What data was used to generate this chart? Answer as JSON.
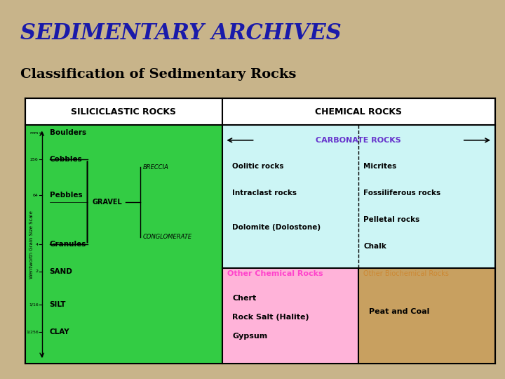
{
  "title": "SEDIMENTARY ARCHIVES",
  "subtitle": "Classification of Sedimentary Rocks",
  "bg_color": "#C8B48A",
  "title_color": "#1a1aaa",
  "subtitle_color": "#000000",
  "table_bg": "#ffffff",
  "green_color": "#33cc44",
  "light_blue_color": "#ccf5f5",
  "pink_color": "#ffb3d9",
  "tan_color": "#c8a060",
  "header_bg": "#ffffff",
  "siliciclastic_header": "SILICICLASTIC ROCKS",
  "chemical_header": "CHEMICAL ROCKS",
  "carbonate_label": "CARBONATE ROCKS",
  "carbonate_color": "#6633cc",
  "grain_sizes": [
    "mm",
    "256",
    "64",
    "4",
    "2",
    "1/16",
    "1/256"
  ],
  "grain_labels": [
    "Boulders",
    "Cobbles",
    "Pebbles",
    "Granules",
    "SAND",
    "SILT",
    "CLAY"
  ],
  "gravel_label": "GRAVEL",
  "breccia_label": "BRECCIA",
  "conglomerate_label": "CONGLOMERATE",
  "oolitic": "Oolitic rocks",
  "intraclast": "Intraclast rocks",
  "dolomite": "Dolomite (Dolostone)",
  "micrites": "Micrites",
  "fossiliferous": "Fossiliferous rocks",
  "pelletal": "Pelletal rocks",
  "chalk": "Chalk",
  "other_chem_label": "Other Chemical Rocks",
  "other_chem_color": "#ff44cc",
  "chert": "Chert",
  "rock_salt": "Rock Salt (Halite)",
  "gypsum": "Gypsum",
  "other_biochem_label": "Other Biochemical Rocks",
  "other_biochem_color": "#cc8833",
  "peat_coal": "Peat and Coal",
  "axis_label": "Wentworth Grain Size Scale"
}
